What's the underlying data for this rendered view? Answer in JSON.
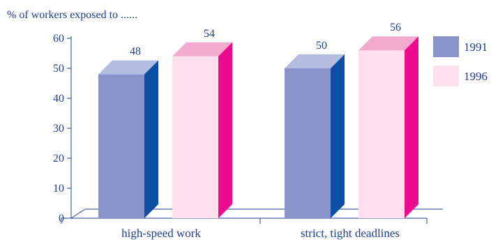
{
  "chart_data": {
    "type": "bar",
    "title": "",
    "ylabel": "% of workers exposed to ......",
    "xlabel": "",
    "categories": [
      "high-speed work",
      "strict, tight deadlines"
    ],
    "series": [
      {
        "name": "1991",
        "values": [
          48,
          50
        ],
        "front": "#8a93c9",
        "top": "#b4bce0",
        "side": "#0c4ea3"
      },
      {
        "name": "1996",
        "values": [
          54,
          56
        ],
        "front": "#fde0ec",
        "top": "#f4aace",
        "side": "#ec0a8e"
      }
    ],
    "ylim": [
      0,
      60
    ],
    "yticks": [
      0,
      10,
      20,
      30,
      40,
      50,
      60
    ],
    "data_labels": true,
    "legend": "right",
    "grid": false,
    "colors": {
      "text": "#1f3f8c",
      "axis": "#1f3f8c"
    }
  }
}
